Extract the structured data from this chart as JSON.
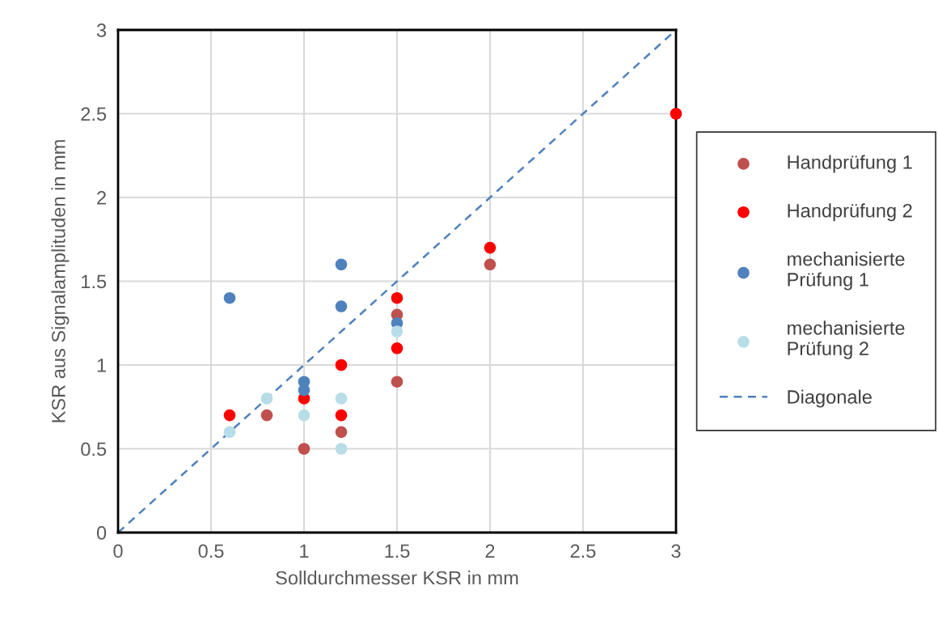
{
  "chart_data": {
    "type": "scatter",
    "xlabel": "Solldurchmesser KSR in mm",
    "ylabel": "KSR aus Signalamplituden in mm",
    "xlim": [
      0,
      3
    ],
    "ylim": [
      0,
      3
    ],
    "xticks": [
      0,
      0.5,
      1,
      1.5,
      2,
      2.5,
      3
    ],
    "yticks": [
      0,
      0.5,
      1,
      1.5,
      2,
      2.5,
      3
    ],
    "grid": true,
    "legend": "right",
    "marker": "circle",
    "series": [
      {
        "name": "Handprüfung 1",
        "color": "#c0504d",
        "x": [
          0.8,
          1,
          1.2,
          1.5,
          1.5,
          2
        ],
        "values": [
          0.7,
          0.5,
          0.6,
          1.3,
          0.9,
          1.6
        ]
      },
      {
        "name": "Handprüfung 2",
        "color": "#ff0000",
        "x": [
          0.6,
          1,
          1.2,
          1.2,
          1.5,
          1.5,
          2,
          3
        ],
        "values": [
          0.7,
          0.8,
          1.0,
          0.7,
          1.4,
          1.1,
          1.7,
          2.5
        ]
      },
      {
        "name": "mechanisierte\nPrüfung 1",
        "color": "#4f81bd",
        "x": [
          0.6,
          1,
          1,
          1.2,
          1.2,
          1.5
        ],
        "values": [
          1.4,
          0.9,
          0.85,
          1.6,
          1.35,
          1.25
        ]
      },
      {
        "name": "mechanisierte\nPrüfung 2",
        "color": "#b7dde8",
        "x": [
          0.6,
          0.8,
          1,
          1.2,
          1.2,
          1.5
        ],
        "values": [
          0.6,
          0.8,
          0.7,
          0.8,
          0.5,
          1.2
        ]
      },
      {
        "name": "Diagonale",
        "type": "line",
        "line_style": "dashed",
        "marker": "none",
        "color": "#4f81bd",
        "x": [
          0,
          3
        ],
        "values": [
          0,
          3
        ]
      }
    ]
  }
}
